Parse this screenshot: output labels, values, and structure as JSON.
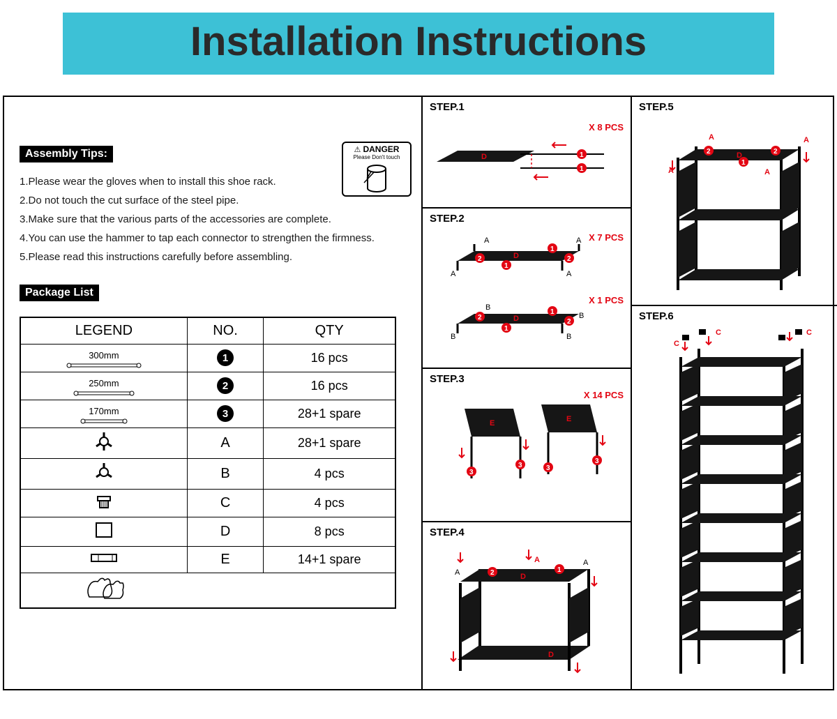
{
  "title": {
    "text": "Installation Instructions",
    "bg_color": "#3dc1d6",
    "text_color": "#2a2a2a",
    "fontsize_pt": 44
  },
  "assembly_tips": {
    "heading": "Assembly Tips:",
    "items": [
      "1.Please wear the gloves when to install this shoe rack.",
      "2.Do not touch the cut surface of the steel pipe.",
      "3.Make sure that the various parts of the accessories are complete.",
      "4.You can use the hammer to tap each connector to strengthen the firmness.",
      "5.Please read this instructions carefully before assembling."
    ]
  },
  "danger": {
    "head": "DANGER",
    "sub": "Please Don't touch"
  },
  "package_list": {
    "heading": "Package List",
    "columns": [
      "LEGEND",
      "NO.",
      "QTY"
    ],
    "rows": [
      {
        "legend_type": "pipe",
        "legend_mm": "300mm",
        "no_type": "circle",
        "no": "1",
        "qty": "16 pcs"
      },
      {
        "legend_type": "pipe",
        "legend_mm": "250mm",
        "no_type": "circle",
        "no": "2",
        "qty": "16 pcs"
      },
      {
        "legend_type": "pipe",
        "legend_mm": "170mm",
        "no_type": "circle",
        "no": "3",
        "qty": "28+1 spare"
      },
      {
        "legend_type": "connA",
        "no_type": "letter",
        "no": "A",
        "qty": "28+1 spare"
      },
      {
        "legend_type": "connB",
        "no_type": "letter",
        "no": "B",
        "qty": "4 pcs"
      },
      {
        "legend_type": "cap",
        "no_type": "letter",
        "no": "C",
        "qty": "4 pcs"
      },
      {
        "legend_type": "panelD",
        "no_type": "letter",
        "no": "D",
        "qty": "8 pcs"
      },
      {
        "legend_type": "panelE",
        "no_type": "letter",
        "no": "E",
        "qty": "14+1 spare"
      },
      {
        "legend_type": "gloves",
        "no_type": "",
        "no": "",
        "qty": ""
      }
    ]
  },
  "steps": {
    "s1": {
      "label": "STEP.1",
      "pcs": "X 8 PCS"
    },
    "s2": {
      "label": "STEP.2",
      "pcs_a": "X 7 PCS",
      "pcs_b": "X 1 PCS"
    },
    "s3": {
      "label": "STEP.3",
      "pcs": "X 14 PCS"
    },
    "s4": {
      "label": "STEP.4"
    },
    "s5": {
      "label": "STEP.5"
    },
    "s6": {
      "label": "STEP.6"
    }
  },
  "colors": {
    "accent_red": "#e30613",
    "panel_black": "#161616",
    "frame_border": "#000000",
    "title_bg": "#3dc1d6"
  }
}
